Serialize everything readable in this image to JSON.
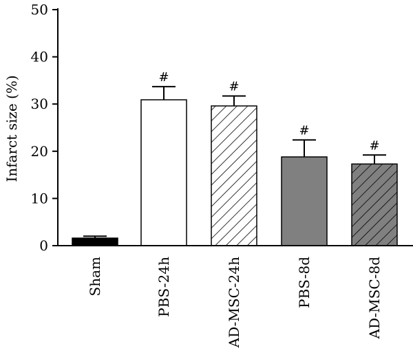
{
  "chart_data": {
    "type": "bar",
    "title": "",
    "xlabel": "",
    "ylabel": "Infarct size (%)",
    "ylim": [
      0,
      50
    ],
    "yticks": [
      0,
      10,
      20,
      30,
      40,
      50
    ],
    "grid": false,
    "categories": [
      "Sham",
      "PBS-24h",
      "AD-MSC-24h",
      "PBS-8d",
      "AD-MSC-8d"
    ],
    "values": [
      1.6,
      30.9,
      29.6,
      18.8,
      17.3
    ],
    "errors": [
      0.4,
      2.8,
      2.1,
      3.6,
      1.9
    ],
    "annotations": [
      "",
      "#",
      "#",
      "#",
      "#"
    ],
    "bar_fills": [
      "solid-black",
      "white",
      "white-hatched",
      "gray",
      "gray-hatched"
    ],
    "colors": {
      "black": "#000000",
      "white": "#ffffff",
      "gray": "#808080"
    }
  }
}
